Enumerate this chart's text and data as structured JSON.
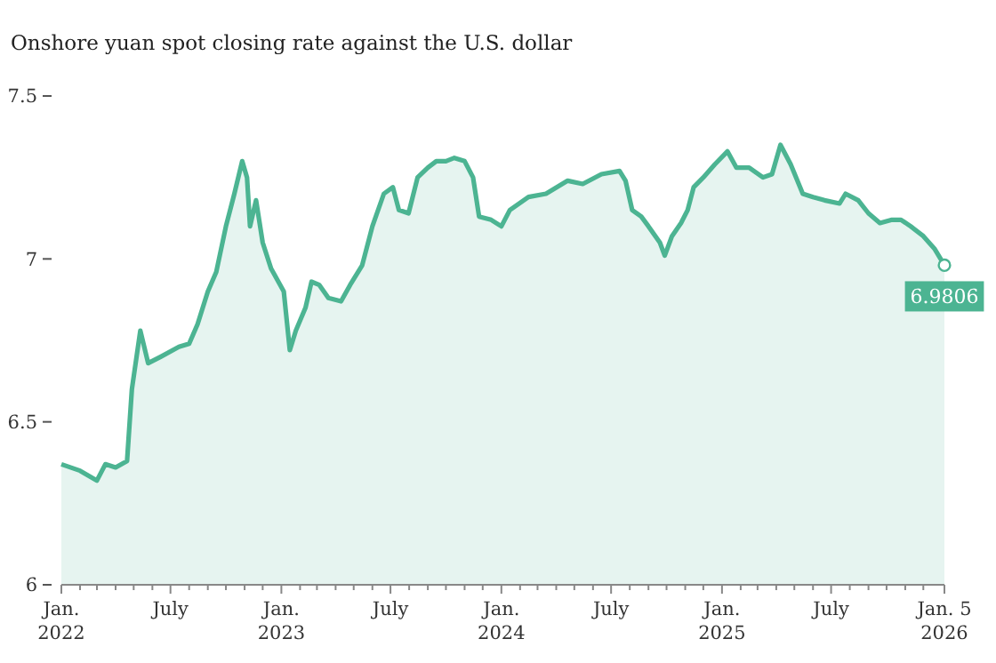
{
  "chart_data": {
    "type": "area",
    "title": "Onshore yuan spot closing rate against the U.S. dollar",
    "x": [
      "2022-01-01",
      "2022-02-01",
      "2022-03-01",
      "2022-03-15",
      "2022-04-01",
      "2022-04-20",
      "2022-04-28",
      "2022-05-12",
      "2022-05-25",
      "2022-06-15",
      "2022-07-15",
      "2022-08-01",
      "2022-08-15",
      "2022-09-01",
      "2022-09-15",
      "2022-10-01",
      "2022-10-15",
      "2022-10-28",
      "2022-11-05",
      "2022-11-10",
      "2022-11-20",
      "2022-12-01",
      "2022-12-15",
      "2023-01-05",
      "2023-01-15",
      "2023-01-25",
      "2023-02-10",
      "2023-02-20",
      "2023-03-05",
      "2023-03-20",
      "2023-04-10",
      "2023-04-25",
      "2023-05-15",
      "2023-06-01",
      "2023-06-20",
      "2023-07-05",
      "2023-07-15",
      "2023-07-31",
      "2023-08-15",
      "2023-09-01",
      "2023-09-15",
      "2023-10-01",
      "2023-10-15",
      "2023-11-01",
      "2023-11-15",
      "2023-11-25",
      "2023-12-15",
      "2024-01-01",
      "2024-01-15",
      "2024-02-15",
      "2024-03-15",
      "2024-04-20",
      "2024-05-15",
      "2024-06-15",
      "2024-07-15",
      "2024-07-25",
      "2024-08-05",
      "2024-08-20",
      "2024-09-01",
      "2024-09-20",
      "2024-09-28",
      "2024-10-10",
      "2024-10-25",
      "2024-11-05",
      "2024-11-15",
      "2024-12-01",
      "2024-12-20",
      "2025-01-10",
      "2025-01-25",
      "2025-02-15",
      "2025-03-10",
      "2025-03-25",
      "2025-04-08",
      "2025-04-25",
      "2025-05-15",
      "2025-06-01",
      "2025-06-20",
      "2025-07-15",
      "2025-07-25",
      "2025-08-15",
      "2025-09-01",
      "2025-09-20",
      "2025-10-10",
      "2025-10-25",
      "2025-11-10",
      "2025-12-01",
      "2025-12-20",
      "2026-01-05"
    ],
    "series": [
      {
        "color": "#4cb492",
        "values": [
          6.37,
          6.35,
          6.32,
          6.37,
          6.36,
          6.38,
          6.6,
          6.78,
          6.68,
          6.7,
          6.73,
          6.74,
          6.8,
          6.9,
          6.96,
          7.1,
          7.2,
          7.3,
          7.25,
          7.1,
          7.18,
          7.05,
          6.97,
          6.9,
          6.72,
          6.78,
          6.85,
          6.93,
          6.92,
          6.88,
          6.87,
          6.92,
          6.98,
          7.1,
          7.2,
          7.22,
          7.15,
          7.14,
          7.25,
          7.28,
          7.3,
          7.3,
          7.31,
          7.3,
          7.25,
          7.13,
          7.12,
          7.1,
          7.15,
          7.19,
          7.2,
          7.24,
          7.23,
          7.26,
          7.27,
          7.24,
          7.15,
          7.13,
          7.1,
          7.05,
          7.01,
          7.07,
          7.11,
          7.15,
          7.22,
          7.25,
          7.29,
          7.33,
          7.28,
          7.28,
          7.25,
          7.26,
          7.35,
          7.29,
          7.2,
          7.19,
          7.18,
          7.17,
          7.2,
          7.18,
          7.14,
          7.11,
          7.12,
          7.12,
          7.1,
          7.07,
          7.03,
          6.9806
        ]
      }
    ],
    "annotations": [
      {
        "text": "6.9806",
        "x": "2026-01-05",
        "y": 6.9806
      }
    ],
    "xlim": [
      "2022-01-01",
      "2026-01-05"
    ],
    "xticks": [
      {
        "value": "2022-01-01",
        "label": "Jan.\n2022"
      },
      {
        "value": "2022-02-01",
        "label": null
      },
      {
        "value": "2022-03-01",
        "label": null
      },
      {
        "value": "2022-04-01",
        "label": null
      },
      {
        "value": "2022-05-01",
        "label": null
      },
      {
        "value": "2022-06-01",
        "label": null
      },
      {
        "value": "2022-07-01",
        "label": "July"
      },
      {
        "value": "2022-08-01",
        "label": null
      },
      {
        "value": "2022-09-01",
        "label": null
      },
      {
        "value": "2022-10-01",
        "label": null
      },
      {
        "value": "2022-11-01",
        "label": null
      },
      {
        "value": "2022-12-01",
        "label": null
      },
      {
        "value": "2023-01-01",
        "label": "Jan.\n2023"
      },
      {
        "value": "2023-02-01",
        "label": null
      },
      {
        "value": "2023-03-01",
        "label": null
      },
      {
        "value": "2023-04-01",
        "label": null
      },
      {
        "value": "2023-05-01",
        "label": null
      },
      {
        "value": "2023-06-01",
        "label": null
      },
      {
        "value": "2023-07-01",
        "label": "July"
      },
      {
        "value": "2023-08-01",
        "label": null
      },
      {
        "value": "2023-09-01",
        "label": null
      },
      {
        "value": "2023-10-01",
        "label": null
      },
      {
        "value": "2023-11-01",
        "label": null
      },
      {
        "value": "2023-12-01",
        "label": null
      },
      {
        "value": "2024-01-01",
        "label": "Jan.\n2024"
      },
      {
        "value": "2024-02-01",
        "label": null
      },
      {
        "value": "2024-03-01",
        "label": null
      },
      {
        "value": "2024-04-01",
        "label": null
      },
      {
        "value": "2024-05-01",
        "label": null
      },
      {
        "value": "2024-06-01",
        "label": null
      },
      {
        "value": "2024-07-01",
        "label": "July"
      },
      {
        "value": "2024-08-01",
        "label": null
      },
      {
        "value": "2024-09-01",
        "label": null
      },
      {
        "value": "2024-10-01",
        "label": null
      },
      {
        "value": "2024-11-01",
        "label": null
      },
      {
        "value": "2024-12-01",
        "label": null
      },
      {
        "value": "2025-01-01",
        "label": "Jan.\n2025"
      },
      {
        "value": "2025-02-01",
        "label": null
      },
      {
        "value": "2025-03-01",
        "label": null
      },
      {
        "value": "2025-04-01",
        "label": null
      },
      {
        "value": "2025-05-01",
        "label": null
      },
      {
        "value": "2025-06-01",
        "label": null
      },
      {
        "value": "2025-07-01",
        "label": "July"
      },
      {
        "value": "2025-08-01",
        "label": null
      },
      {
        "value": "2025-09-01",
        "label": null
      },
      {
        "value": "2025-10-01",
        "label": null
      },
      {
        "value": "2025-11-01",
        "label": null
      },
      {
        "value": "2025-12-01",
        "label": null
      },
      {
        "value": "2026-01-05",
        "label": "Jan. 5\n2026"
      }
    ],
    "ylim": [
      6,
      7.5
    ],
    "yticks": [
      6,
      6.5,
      7,
      7.5
    ],
    "grid": false,
    "marker": "none",
    "line_style": "solid"
  }
}
